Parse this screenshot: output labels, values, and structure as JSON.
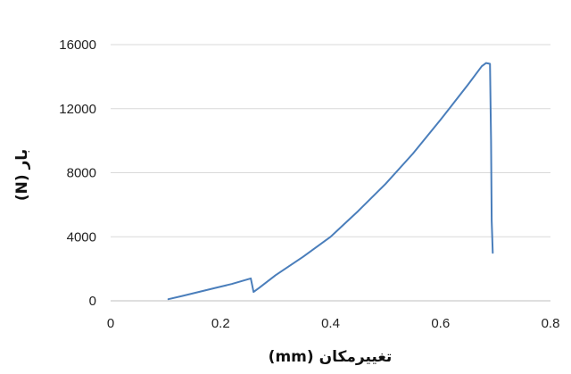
{
  "chart_data": {
    "type": "line",
    "title": "",
    "xlabel": "تغییرمکان (mm)",
    "ylabel": "بار (N)",
    "xlim": [
      0,
      0.8
    ],
    "ylim": [
      0,
      16000
    ],
    "x_ticks": [
      0,
      0.2,
      0.4,
      0.6,
      0.8
    ],
    "x_tick_labels": [
      "0",
      "0.2",
      "0.4",
      "0.6",
      "0.8"
    ],
    "y_ticks": [
      0,
      4000,
      8000,
      12000,
      16000
    ],
    "y_tick_labels": [
      "0",
      "4000",
      "8000",
      "12000",
      "16000"
    ],
    "grid": "horizontal",
    "legend": "none",
    "series": [
      {
        "color": "#4a7ebb",
        "x": [
          0.105,
          0.13,
          0.16,
          0.19,
          0.22,
          0.25,
          0.255,
          0.26,
          0.27,
          0.3,
          0.35,
          0.4,
          0.45,
          0.5,
          0.55,
          0.6,
          0.65,
          0.675,
          0.683,
          0.69,
          0.692,
          0.693,
          0.695
        ],
        "y": [
          100,
          300,
          550,
          800,
          1050,
          1350,
          1400,
          550,
          800,
          1600,
          2750,
          4000,
          5600,
          7300,
          9200,
          11300,
          13500,
          14650,
          14850,
          14800,
          10000,
          5000,
          3000
        ]
      }
    ]
  }
}
